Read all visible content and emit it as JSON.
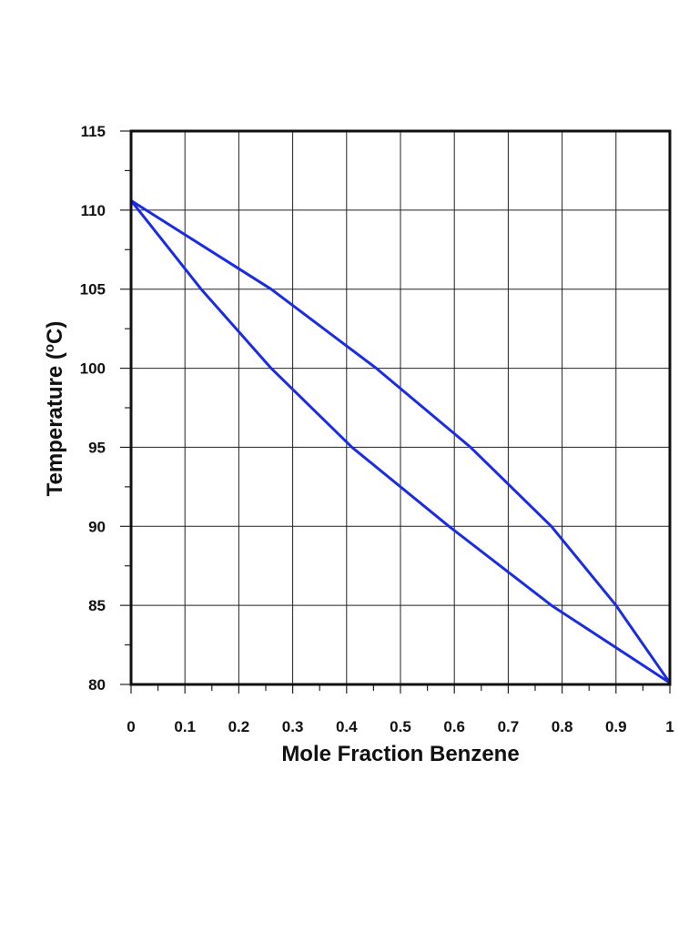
{
  "chart_data": {
    "type": "line",
    "title": "",
    "xlabel": "Mole Fraction Benzene",
    "ylabel_main": "Temperature (",
    "ylabel_degree": "o",
    "ylabel_unit": "C)",
    "xlim": [
      0,
      1
    ],
    "ylim": [
      80,
      115
    ],
    "x_ticks": [
      0,
      0.1,
      0.2,
      0.3,
      0.4,
      0.5,
      0.6,
      0.7,
      0.8,
      0.9,
      1
    ],
    "x_tick_labels": [
      "0",
      "0.1",
      "0.2",
      "0.3",
      "0.4",
      "0.5",
      "0.6",
      "0.7",
      "0.8",
      "0.9",
      "1"
    ],
    "y_ticks": [
      80,
      85,
      90,
      95,
      100,
      105,
      110,
      115
    ],
    "y_tick_labels": [
      "80",
      "85",
      "90",
      "95",
      "100",
      "105",
      "110",
      "115"
    ],
    "grid": true,
    "line_color": "#1a2be8",
    "series": [
      {
        "x": [
          0,
          0.13,
          0.26,
          0.41,
          0.59,
          0.78,
          1
        ],
        "y": [
          110.6,
          105,
          100,
          95,
          90,
          85,
          80.1
        ]
      },
      {
        "x": [
          0,
          0.26,
          0.455,
          0.63,
          0.78,
          0.9,
          1
        ],
        "y": [
          110.6,
          105,
          100,
          95,
          90,
          85,
          80.1
        ]
      }
    ]
  }
}
